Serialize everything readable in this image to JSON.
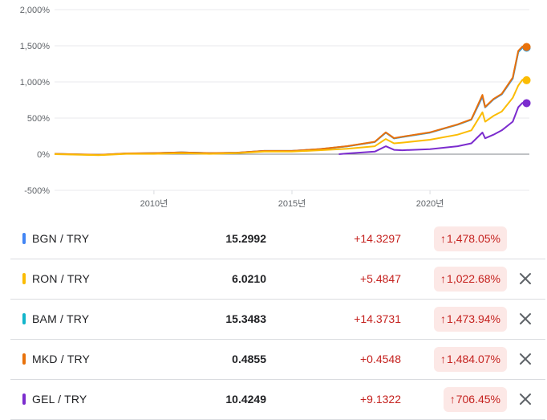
{
  "chart_data": {
    "type": "line",
    "y_ticks": [
      "2,000%",
      "1,500%",
      "1,000%",
      "500%",
      "0%",
      "-500%"
    ],
    "y_tick_values": [
      2000,
      1500,
      1000,
      500,
      0,
      -500
    ],
    "x_ticks": [
      "2010년",
      "2015년",
      "2020년"
    ],
    "x_tick_values": [
      2010,
      2015,
      2020
    ],
    "xlim": [
      2006.4,
      2023.6
    ],
    "ylim": [
      -500,
      2000
    ],
    "grid": true,
    "series": [
      {
        "name": "BGN / TRY",
        "color": "#4285f4",
        "x": [
          2006.4,
          2008,
          2009,
          2010,
          2011,
          2012,
          2013,
          2014,
          2015,
          2016,
          2017,
          2018,
          2018.4,
          2018.7,
          2019,
          2020,
          2021,
          2021.5,
          2021.9,
          2022,
          2022.3,
          2022.6,
          2023,
          2023.2,
          2023.35,
          2023.5
        ],
        "values": [
          5,
          -10,
          10,
          15,
          25,
          15,
          20,
          45,
          45,
          70,
          110,
          170,
          300,
          220,
          240,
          300,
          410,
          480,
          800,
          650,
          760,
          830,
          1050,
          1420,
          1480,
          1478
        ]
      },
      {
        "name": "RON / TRY",
        "color": "#fbbc04",
        "x": [
          2006.4,
          2008,
          2009,
          2010,
          2011,
          2012,
          2013,
          2014,
          2015,
          2016,
          2017,
          2018,
          2018.4,
          2018.7,
          2019,
          2020,
          2021,
          2021.5,
          2021.9,
          2022,
          2022.3,
          2022.6,
          2023,
          2023.2,
          2023.35,
          2023.5
        ],
        "values": [
          0,
          -15,
          5,
          5,
          15,
          5,
          15,
          35,
          35,
          55,
          75,
          110,
          210,
          150,
          160,
          200,
          270,
          330,
          580,
          450,
          530,
          590,
          780,
          950,
          1030,
          1023
        ]
      },
      {
        "name": "BAM / TRY",
        "color": "#12b5cb",
        "x": [
          2006.4,
          2008,
          2009,
          2010,
          2011,
          2012,
          2013,
          2014,
          2015,
          2016,
          2017,
          2018,
          2018.4,
          2018.7,
          2019,
          2020,
          2021,
          2021.5,
          2021.9,
          2022,
          2022.3,
          2022.6,
          2023,
          2023.2,
          2023.35,
          2023.5
        ],
        "values": [
          4,
          -11,
          9,
          14,
          24,
          14,
          19,
          44,
          44,
          69,
          108,
          168,
          298,
          218,
          238,
          298,
          408,
          478,
          795,
          648,
          758,
          828,
          1045,
          1412,
          1474,
          1474
        ]
      },
      {
        "name": "MKD / TRY",
        "color": "#e8710a",
        "x": [
          2006.4,
          2008,
          2009,
          2010,
          2011,
          2012,
          2013,
          2014,
          2015,
          2016,
          2017,
          2018,
          2018.4,
          2018.7,
          2019,
          2020,
          2021,
          2021.5,
          2021.9,
          2022,
          2022.3,
          2022.6,
          2023,
          2023.2,
          2023.35,
          2023.5
        ],
        "values": [
          6,
          -9,
          11,
          16,
          26,
          16,
          21,
          46,
          46,
          71,
          111,
          172,
          302,
          222,
          242,
          302,
          412,
          482,
          820,
          655,
          765,
          835,
          1060,
          1430,
          1490,
          1484
        ]
      },
      {
        "name": "GEL / TRY",
        "color": "#7b2cce",
        "x": [
          2016.7,
          2017,
          2018,
          2018.4,
          2018.7,
          2019,
          2020,
          2021,
          2021.5,
          2021.9,
          2022,
          2022.3,
          2022.6,
          2023,
          2023.2,
          2023.35,
          2023.5
        ],
        "values": [
          0,
          10,
          35,
          110,
          60,
          55,
          70,
          110,
          150,
          300,
          220,
          270,
          330,
          450,
          650,
          710,
          706
        ]
      }
    ]
  },
  "rows": [
    {
      "color": "#4285f4",
      "pair": "BGN / TRY",
      "price": "15.2992",
      "change": "+14.3297",
      "arrow": "↑",
      "pct": "1,478.05%",
      "removable": false
    },
    {
      "color": "#fbbc04",
      "pair": "RON / TRY",
      "price": "6.0210",
      "change": "+5.4847",
      "arrow": "↑",
      "pct": "1,022.68%",
      "removable": true
    },
    {
      "color": "#12b5cb",
      "pair": "BAM / TRY",
      "price": "15.3483",
      "change": "+14.3731",
      "arrow": "↑",
      "pct": "1,473.94%",
      "removable": true
    },
    {
      "color": "#e8710a",
      "pair": "MKD / TRY",
      "price": "0.4855",
      "change": "+0.4548",
      "arrow": "↑",
      "pct": "1,484.07%",
      "removable": true
    },
    {
      "color": "#7b2cce",
      "pair": "GEL / TRY",
      "price": "10.4249",
      "change": "+9.1322",
      "arrow": "↑",
      "pct": "706.45%",
      "removable": true
    }
  ],
  "icons": {
    "remove": "close-icon",
    "up": "arrow-up-icon"
  }
}
